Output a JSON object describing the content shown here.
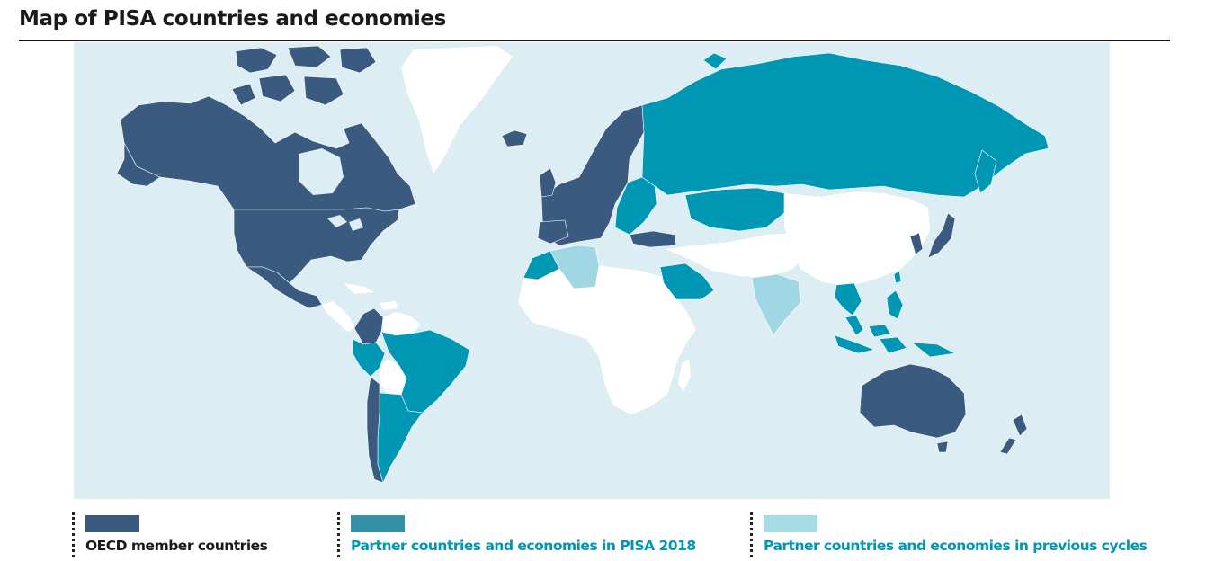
{
  "title": "Map of PISA countries and economies",
  "map": {
    "colors": {
      "ocean": "#dcedf3",
      "oecd_member": "#3a5a80",
      "partner_2018": "#0097b4",
      "partner_previous": "#9fd8e4",
      "non_participant": "#ffffff"
    },
    "regions": [
      {
        "name": "Canada",
        "category": "oecd_member"
      },
      {
        "name": "United States",
        "category": "oecd_member"
      },
      {
        "name": "Mexico",
        "category": "oecd_member"
      },
      {
        "name": "Colombia",
        "category": "oecd_member"
      },
      {
        "name": "Chile",
        "category": "oecd_member"
      },
      {
        "name": "Europe (OECD)",
        "category": "oecd_member"
      },
      {
        "name": "Turkey",
        "category": "oecd_member"
      },
      {
        "name": "Israel",
        "category": "oecd_member"
      },
      {
        "name": "Japan",
        "category": "oecd_member"
      },
      {
        "name": "Korea",
        "category": "oecd_member"
      },
      {
        "name": "Australia",
        "category": "oecd_member"
      },
      {
        "name": "New Zealand",
        "category": "oecd_member"
      },
      {
        "name": "Russia",
        "category": "partner_2018"
      },
      {
        "name": "Kazakhstan",
        "category": "partner_2018"
      },
      {
        "name": "Brazil",
        "category": "partner_2018"
      },
      {
        "name": "Argentina",
        "category": "partner_2018"
      },
      {
        "name": "Peru",
        "category": "partner_2018"
      },
      {
        "name": "Saudi Arabia",
        "category": "partner_2018"
      },
      {
        "name": "Morocco",
        "category": "partner_2018"
      },
      {
        "name": "Indonesia",
        "category": "partner_2018"
      },
      {
        "name": "Thailand",
        "category": "partner_2018"
      },
      {
        "name": "Malaysia",
        "category": "partner_2018"
      },
      {
        "name": "Philippines",
        "category": "partner_2018"
      },
      {
        "name": "Algeria",
        "category": "partner_previous"
      },
      {
        "name": "Tunisia",
        "category": "partner_previous"
      },
      {
        "name": "India",
        "category": "partner_previous"
      }
    ]
  },
  "legend": [
    {
      "key": "oecd_member",
      "label": "OECD member countries",
      "label_color": "#1a1a1a",
      "swatch_color": "#3a5a80"
    },
    {
      "key": "partner_2018",
      "label": "Partner countries and economies in PISA 2018",
      "label_color": "#0097b4",
      "swatch_color": "#3591a8"
    },
    {
      "key": "partner_previous",
      "label": "Partner countries and economies in previous cycles",
      "label_color": "#0097b4",
      "swatch_color": "#a6dce6"
    }
  ]
}
